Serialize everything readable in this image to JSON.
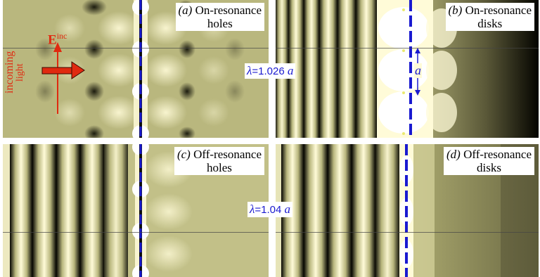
{
  "panels": {
    "a": {
      "tag": "(a)",
      "line1": "On-resonance",
      "line2": "holes"
    },
    "b": {
      "tag": "(b)",
      "line1": "On-resonance",
      "line2": "disks"
    },
    "c": {
      "tag": "(c)",
      "line1": "Off-resonance",
      "line2": "holes"
    },
    "d": {
      "tag": "(d)",
      "line1": "Off-resonance",
      "line2": "disks"
    }
  },
  "wavelength_top": {
    "symbol": "λ",
    "value": "=1.026",
    "unit": "a"
  },
  "wavelength_bottom": {
    "symbol": "λ",
    "value": "=1.04",
    "unit": "a"
  },
  "incident": {
    "field_label": "E",
    "field_sup": "inc",
    "text_line1": "incoming",
    "text_line2": "light"
  },
  "period_label": "a",
  "colors": {
    "field_base": "#c8c690",
    "bright": "#fffbd8",
    "dark": "#050500",
    "wire": "#1a1ad0",
    "arrow": "#e02a10"
  }
}
